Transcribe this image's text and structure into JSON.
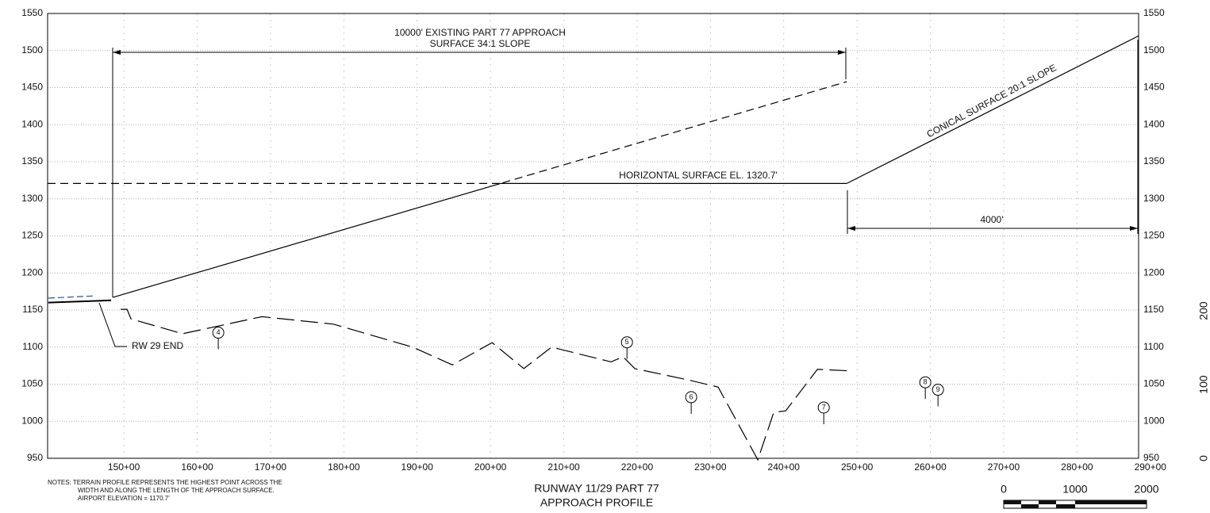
{
  "chart_data": {
    "type": "line",
    "title": "RUNWAY 11/29 PART 77",
    "subtitle": "APPROACH PROFILE",
    "xlim": [
      13960,
      28840
    ],
    "ylim": [
      950,
      1550
    ],
    "yticks": [
      950,
      1000,
      1050,
      1100,
      1150,
      1200,
      1250,
      1300,
      1350,
      1400,
      1450,
      1500,
      1550
    ],
    "xticks": [
      {
        "value": 15000,
        "label": "150+00"
      },
      {
        "value": 16000,
        "label": "160+00"
      },
      {
        "value": 17000,
        "label": "170+00"
      },
      {
        "value": 18000,
        "label": "180+00"
      },
      {
        "value": 19000,
        "label": "190+00"
      },
      {
        "value": 20000,
        "label": "200+00"
      },
      {
        "value": 21000,
        "label": "210+00"
      },
      {
        "value": 22000,
        "label": "220+00"
      },
      {
        "value": 23000,
        "label": "230+00"
      },
      {
        "value": 24000,
        "label": "240+00"
      },
      {
        "value": 25000,
        "label": "250+00"
      },
      {
        "value": 26000,
        "label": "260+00"
      },
      {
        "value": 27000,
        "label": "270+00"
      },
      {
        "value": 28000,
        "label": "280+00"
      },
      {
        "value": 29000,
        "label": "290+00"
      }
    ],
    "grid": true,
    "series": [
      {
        "color": "#000000",
        "style": "solid",
        "x": [
          13970,
          14827
        ],
        "values": [
          1160,
          1163
        ]
      },
      {
        "color": "#1a4fb0",
        "style": "dashed",
        "x": [
          13970,
          14600
        ],
        "values": [
          1166,
          1169
        ]
      },
      {
        "color": "#000000",
        "style": "long-dashed",
        "x": [
          14957,
          15043,
          15097,
          15801,
          16883,
          17857,
          18939,
          19480,
          20022,
          20455,
          20833,
          21645,
          21808,
          21970,
          22728,
          23106,
          23647,
          23864,
          24026,
          24459,
          24892
        ],
        "values": [
          1151,
          1151,
          1138,
          1118,
          1141,
          1131,
          1100,
          1076,
          1106,
          1071,
          1100,
          1080,
          1087,
          1071,
          1055,
          1046,
          948,
          1012,
          1014,
          1070,
          1068
        ]
      },
      {
        "color": "#000000",
        "style": "approach",
        "x": [
          14850,
          24860
        ],
        "values": [
          1167,
          1458
        ]
      },
      {
        "color": "#000000",
        "style": "horizontal",
        "x": [
          13960,
          24860
        ],
        "values": [
          1320.7,
          1320.7
        ]
      },
      {
        "color": "#000000",
        "style": "solid",
        "x": [
          24860,
          28842
        ],
        "values": [
          1320.7,
          1520
        ]
      }
    ],
    "obstacles": {
      "labels": [
        "4",
        "5",
        "6",
        "7",
        "8",
        "9"
      ],
      "x": [
        16288,
        21862,
        22738,
        24546,
        25931,
        26104
      ],
      "values": [
        1097,
        1084,
        1010,
        996,
        1030,
        1020
      ]
    },
    "annotations": {
      "approach_1": "10000' EXISTING PART 77 APPROACH",
      "approach_2": "SURFACE 34:1 SLOPE",
      "horizontal": "HORIZONTAL SURFACE EL. 1320.7'",
      "conical": "CONICAL SURFACE 20:1 SLOPE",
      "dimension": "4000'",
      "runway_end": "RW 29 END"
    },
    "notes": [
      "NOTES:  TERRAIN PROFILE REPRESENTS THE HIGHEST POINT ACROSS THE",
      "WIDTH AND ALONG THE LENGTH OF THE APPROACH SURFACE.",
      "AIRPORT ELEVATION = 1170.7'"
    ],
    "scale_labels": [
      "0",
      "1000",
      "2000"
    ],
    "vertical_scale_labels": [
      "0",
      "100",
      "200"
    ]
  }
}
